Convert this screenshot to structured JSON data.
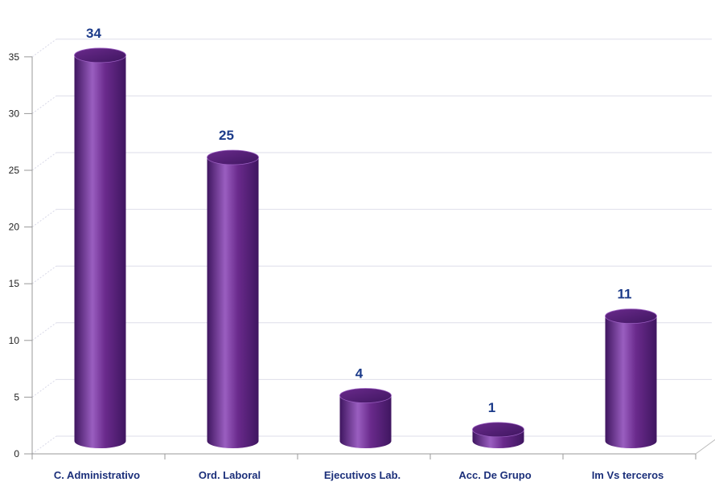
{
  "chart_data": {
    "type": "bar",
    "style": "3d-cylinder",
    "categories": [
      "C. Administrativo",
      "Ord. Laboral",
      "Ejecutivos Lab.",
      "Acc. De Grupo",
      "Im Vs terceros"
    ],
    "values": [
      34,
      25,
      4,
      1,
      11
    ],
    "data_labels": [
      "34",
      "25",
      "4",
      "1",
      "11"
    ],
    "ylim": [
      0,
      35
    ],
    "yticks": [
      "0",
      "5",
      "10",
      "15",
      "20",
      "25",
      "30",
      "35"
    ],
    "grid": true,
    "legend": "none",
    "title": "",
    "xlabel": "",
    "ylabel": "",
    "colors": {
      "bar_main": "#6a2a8c",
      "bar_light": "#9a5ec0",
      "bar_dark": "#3f1660",
      "label": "#1c3b8a",
      "axis_text": "#1b2f7a"
    }
  }
}
